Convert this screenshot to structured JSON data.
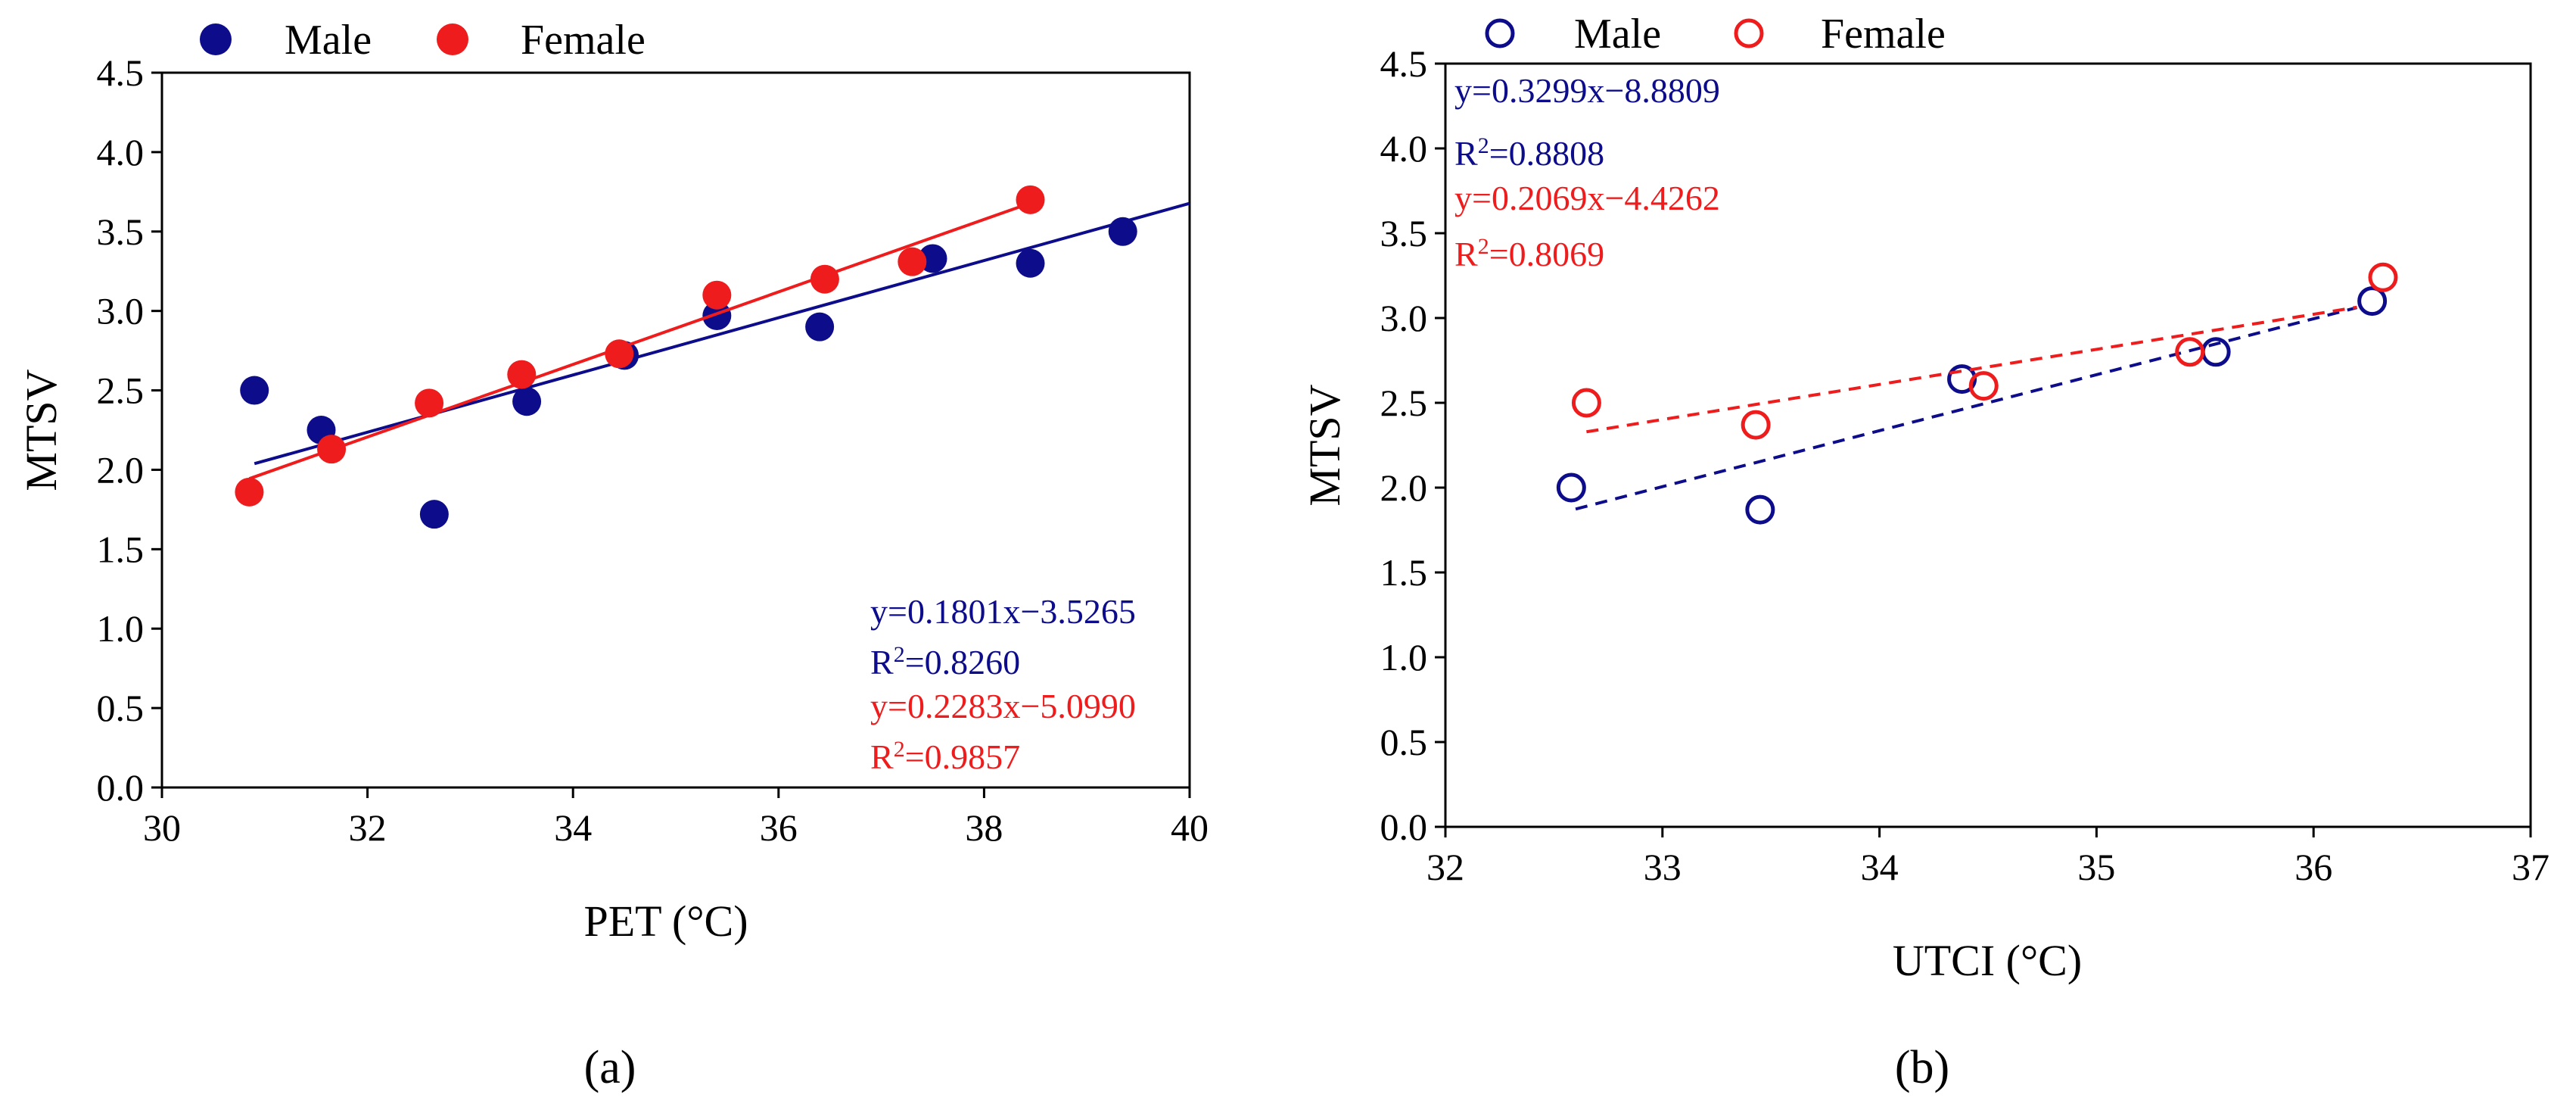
{
  "chart_data": [
    {
      "panel_label": "(a)",
      "type": "scatter",
      "xlabel": "PET (°C)",
      "ylabel": "MTSV",
      "xlim": [
        30,
        40
      ],
      "ylim": [
        0,
        4.5
      ],
      "xticks": [
        "30",
        "32",
        "34",
        "36",
        "38",
        "40"
      ],
      "yticks": [
        "0.0",
        "0.5",
        "1.0",
        "1.5",
        "2.0",
        "2.5",
        "3.0",
        "3.5",
        "4.0",
        "4.5"
      ],
      "legend": {
        "position": "top-left",
        "entries": [
          "Male",
          "Female"
        ]
      },
      "marker": "filled",
      "fit_line_style": "solid",
      "series": [
        {
          "name": "Male",
          "color": "#0d0d8c",
          "points": [
            [
              30.9,
              2.5
            ],
            [
              31.55,
              2.25
            ],
            [
              32.65,
              1.72
            ],
            [
              33.55,
              2.43
            ],
            [
              34.5,
              2.72
            ],
            [
              35.4,
              2.97
            ],
            [
              36.4,
              2.9
            ],
            [
              37.5,
              3.33
            ],
            [
              38.45,
              3.3
            ],
            [
              39.35,
              3.5
            ]
          ],
          "fit": {
            "slope": 0.1801,
            "intercept": -3.5265,
            "x_range": [
              30.9,
              40
            ]
          },
          "equation": "y=0.1801x−3.5265",
          "r2_prefix": "R",
          "r2_value": "=0.8260"
        },
        {
          "name": "Female",
          "color": "#ee1c1c",
          "points": [
            [
              30.85,
              1.86
            ],
            [
              31.65,
              2.13
            ],
            [
              32.6,
              2.42
            ],
            [
              33.5,
              2.6
            ],
            [
              34.45,
              2.73
            ],
            [
              35.4,
              3.1
            ],
            [
              36.45,
              3.2
            ],
            [
              37.3,
              3.31
            ],
            [
              38.45,
              3.7
            ]
          ],
          "fit": {
            "slope": 0.2283,
            "intercept": -5.099,
            "x_range": [
              30.85,
              38.45
            ]
          },
          "equation": "y=0.2283x−5.0990",
          "r2_prefix": "R",
          "r2_value": "=0.9857"
        }
      ]
    },
    {
      "panel_label": "(b)",
      "type": "scatter",
      "xlabel": "UTCI (°C)",
      "ylabel": "MTSV",
      "xlim": [
        32,
        37
      ],
      "ylim": [
        0,
        4.5
      ],
      "xticks": [
        "32",
        "33",
        "34",
        "35",
        "36",
        "37"
      ],
      "yticks": [
        "0.0",
        "0.5",
        "1.0",
        "1.5",
        "2.0",
        "2.5",
        "3.0",
        "3.5",
        "4.0",
        "4.5"
      ],
      "legend": {
        "position": "top-left",
        "entries": [
          "Male",
          "Female"
        ]
      },
      "marker": "hollow",
      "fit_line_style": "dashed",
      "series": [
        {
          "name": "Male",
          "color": "#0d0d8c",
          "points": [
            [
              32.58,
              2.0
            ],
            [
              33.45,
              1.87
            ],
            [
              34.38,
              2.64
            ],
            [
              35.55,
              2.8
            ],
            [
              36.27,
              3.1
            ]
          ],
          "fit": {
            "slope": 0.3299,
            "intercept": -8.8809,
            "x_range": [
              32.6,
              36.2
            ]
          },
          "equation": "y=0.3299x−8.8809",
          "r2_prefix": "R",
          "r2_value": "=0.8808"
        },
        {
          "name": "Female",
          "color": "#ee1c1c",
          "points": [
            [
              32.65,
              2.5
            ],
            [
              33.43,
              2.37
            ],
            [
              34.48,
              2.6
            ],
            [
              35.43,
              2.8
            ],
            [
              36.32,
              3.24
            ]
          ],
          "fit": {
            "slope": 0.2069,
            "intercept": -4.4262,
            "x_range": [
              32.65,
              36.2
            ]
          },
          "equation": "y=0.2069x−4.4262",
          "r2_prefix": "R",
          "r2_value": "=0.8069"
        }
      ]
    }
  ]
}
